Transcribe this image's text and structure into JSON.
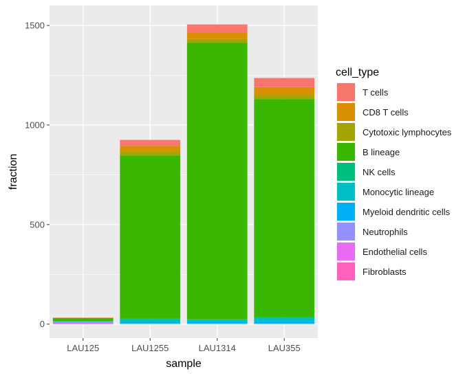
{
  "chart_data": {
    "type": "bar",
    "stacked": true,
    "categories": [
      "LAU125",
      "LAU1255",
      "LAU1314",
      "LAU355"
    ],
    "xlabel": "sample",
    "ylabel": "fraction",
    "ylim": [
      -70,
      1600
    ],
    "yticks": [
      0,
      500,
      1000,
      1500
    ],
    "grid": true,
    "legend_title": "cell_type",
    "legend_position": "right",
    "series": [
      {
        "name": "T cells",
        "color": "#F8766D",
        "values": [
          1,
          30,
          43,
          46
        ]
      },
      {
        "name": "CD8 T cells",
        "color": "#D89000",
        "values": [
          1,
          28,
          30,
          40
        ]
      },
      {
        "name": "Cytotoxic lymphocytes",
        "color": "#A3A500",
        "values": [
          1,
          20,
          20,
          20
        ]
      },
      {
        "name": "B lineage",
        "color": "#39B600",
        "values": [
          15,
          820,
          1388,
          1095
        ]
      },
      {
        "name": "NK cells",
        "color": "#00BF7D",
        "values": [
          1,
          3,
          3,
          3
        ]
      },
      {
        "name": "Monocytic lineage",
        "color": "#00BFC4",
        "values": [
          2,
          13,
          8,
          18
        ]
      },
      {
        "name": "Myeloid dendritic cells",
        "color": "#00B0F6",
        "values": [
          2,
          8,
          10,
          11
        ]
      },
      {
        "name": "Neutrophils",
        "color": "#9590FF",
        "values": [
          2,
          1,
          1,
          1
        ]
      },
      {
        "name": "Endothelial cells",
        "color": "#E76BF3",
        "values": [
          6,
          1,
          1,
          1
        ]
      },
      {
        "name": "Fibroblasts",
        "color": "#FF62BC",
        "values": [
          2,
          1,
          1,
          1
        ]
      }
    ]
  }
}
